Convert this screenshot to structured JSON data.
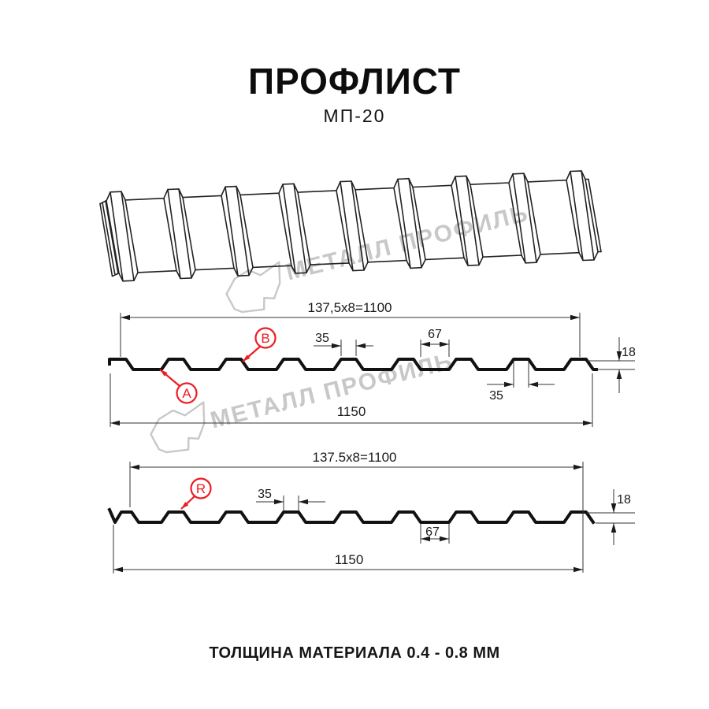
{
  "title": {
    "main": "ПРОФЛИСТ",
    "model": "МП-20"
  },
  "footer": {
    "text": "ТОЛЩИНА МАТЕРИАЛА 0.4 - 0.8 ММ"
  },
  "watermark": {
    "text": "МЕТАЛЛ ПРОФИЛЬ"
  },
  "colors": {
    "accent_red": "#ed1c24",
    "line_black": "#111111",
    "watermark_gray": "#c8c8c8"
  },
  "diagram1": {
    "callout_a": "A",
    "callout_b": "B",
    "dims": {
      "coverage": "137,5x8=1100",
      "rib_top": "35",
      "groove": "67",
      "height": "18",
      "rib_top_lower": "35",
      "total": "1150"
    }
  },
  "diagram2": {
    "callout_r": "R",
    "dims": {
      "coverage": "137.5x8=1100",
      "rib_top": "35",
      "groove": "67",
      "height": "18",
      "total": "1150"
    }
  }
}
